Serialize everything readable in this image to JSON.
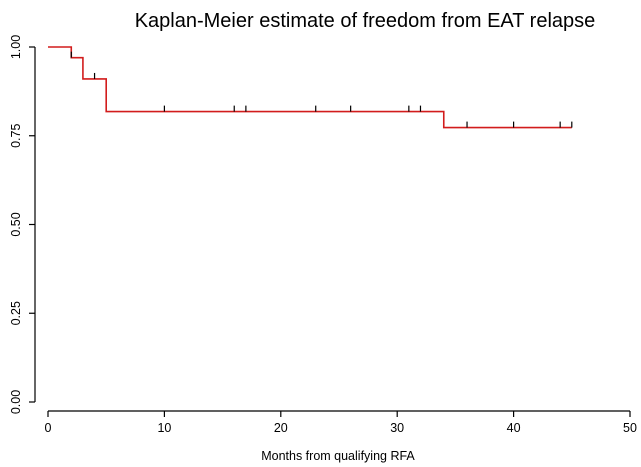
{
  "chart_data": {
    "type": "line",
    "title": "Kaplan-Meier estimate of freedom from EAT relapse",
    "xlabel": "Months from qualifying RFA",
    "ylabel": "",
    "xlim": [
      0,
      50
    ],
    "ylim": [
      0,
      1
    ],
    "x_ticks": [
      0,
      10,
      20,
      30,
      40,
      50
    ],
    "x_tick_labels": [
      "0",
      "10",
      "20",
      "30",
      "40",
      "50"
    ],
    "y_ticks": [
      0,
      0.25,
      0.5,
      0.75,
      1
    ],
    "y_tick_labels": [
      "0.00",
      "0.25",
      "0.50",
      "0.75",
      "1.00"
    ],
    "grid": false,
    "series": [
      {
        "color": "#d21c1c",
        "step": "post",
        "x": [
          0,
          2,
          3,
          5,
          34,
          45
        ],
        "y": [
          1.0,
          0.97,
          0.91,
          0.818,
          0.773,
          0.773
        ]
      }
    ],
    "censor_times": [
      2,
      4,
      10,
      16,
      17,
      23,
      26,
      31,
      32,
      36,
      40,
      44,
      45
    ]
  }
}
